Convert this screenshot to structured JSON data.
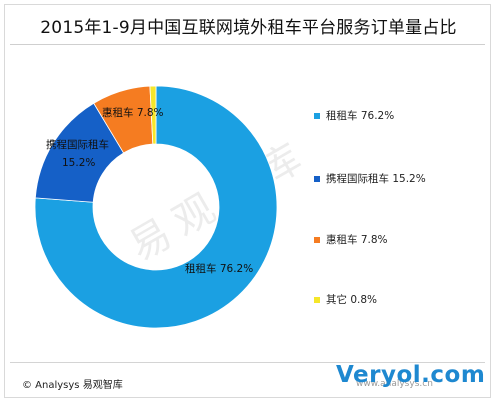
{
  "chart_data": {
    "type": "pie",
    "title": "2015年1-9月中国互联网境外租车平台服务订单量占比",
    "categories": [
      "租租车",
      "携程国际租车",
      "惠租车",
      "其它"
    ],
    "values": [
      76.2,
      15.2,
      7.8,
      0.8
    ],
    "value_labels": [
      "76.2%",
      "15.2%",
      "7.8%",
      "0.8%"
    ],
    "colors": [
      "#1ba0e2",
      "#1560c7",
      "#f57c21",
      "#f5e62a"
    ],
    "legend_placement": "right",
    "slice_labels": [
      "租租车 76.2%",
      "携程国际租车",
      "15.2%",
      "惠租车 7.8%"
    ]
  },
  "legend": [
    {
      "label": "租租车 76.2%",
      "color": "#1ba0e2"
    },
    {
      "label": "携程国际租车 15.2%",
      "color": "#1560c7"
    },
    {
      "label": "惠租车 7.8%",
      "color": "#f57c21"
    },
    {
      "label": "其它 0.8%",
      "color": "#f5e62a"
    }
  ],
  "watermark": "易观智库",
  "footer": {
    "copyright": "© Analysys 易观智库",
    "site_url": "www.analysys.cn",
    "brand": "Veryol.com"
  }
}
